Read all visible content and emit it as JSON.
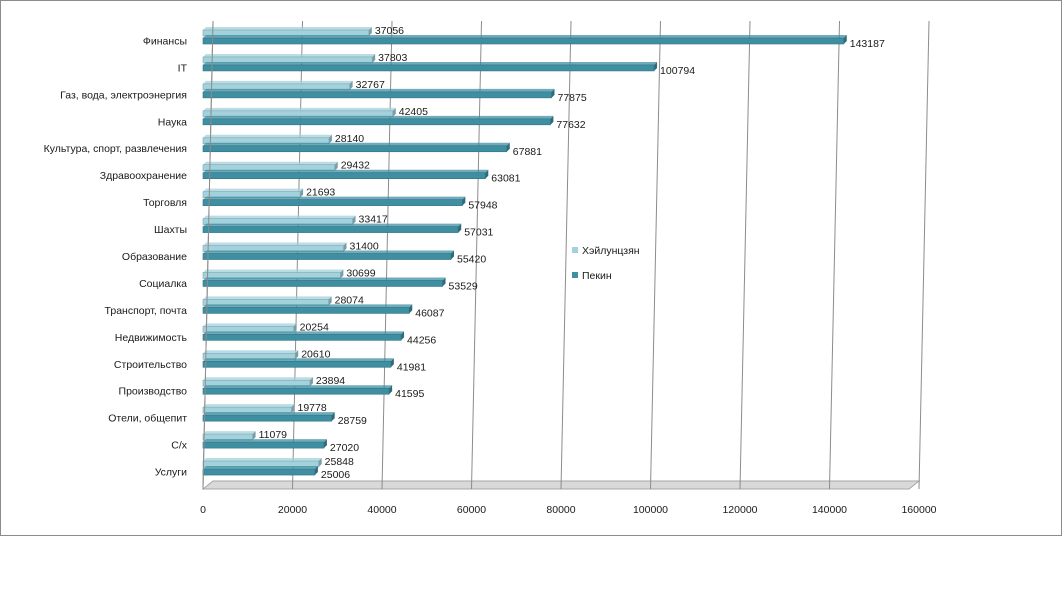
{
  "chart_data": {
    "type": "bar",
    "orientation": "horizontal",
    "categories": [
      "Финансы",
      "IT",
      "Газ, вода,  электроэнергия",
      "Наука",
      "Культура, спорт, развлечения",
      "Здравоохранение",
      "Торговля",
      "Шахты",
      "Образование",
      "Социалка",
      "Транспорт, почта",
      "Недвижимость",
      "Строительство",
      "Производство",
      "Отели, общепит",
      "С/х",
      "Услуги"
    ],
    "series": [
      {
        "name": "Хэйлунцзян",
        "color": "#a3d1dc",
        "values": [
          37056,
          37803,
          32767,
          42405,
          28140,
          29432,
          21693,
          33417,
          31400,
          30699,
          28074,
          20254,
          20610,
          23894,
          19778,
          11079,
          25848
        ]
      },
      {
        "name": "Пекин",
        "color": "#3f8fa3",
        "values": [
          143187,
          100794,
          77875,
          77632,
          67881,
          63081,
          57948,
          57031,
          55420,
          53529,
          46087,
          44256,
          41981,
          41595,
          28759,
          27020,
          25006
        ]
      }
    ],
    "x_ticks": [
      "0",
      "20000",
      "40000",
      "60000",
      "80000",
      "100000",
      "120000",
      "140000",
      "160000"
    ],
    "xlim": [
      0,
      160000
    ],
    "grid": true,
    "legend_position": "right"
  }
}
